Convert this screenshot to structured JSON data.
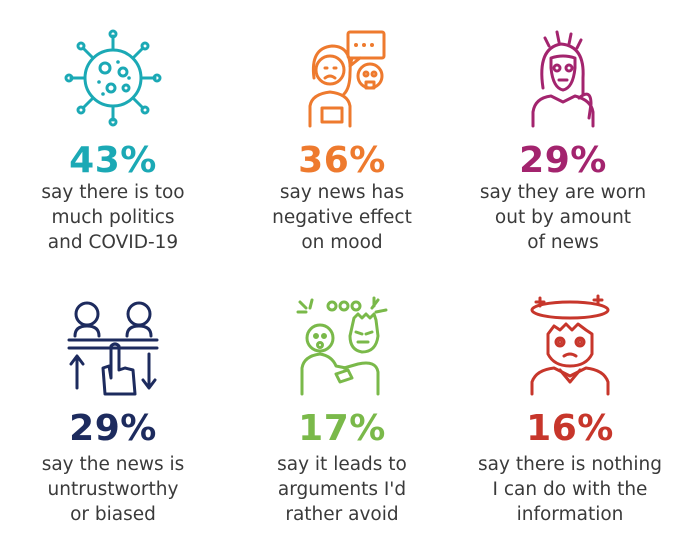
{
  "items": [
    {
      "percent": "43%",
      "color": "#1ba9b5",
      "icon": "virus-icon",
      "lines": [
        "say there is too",
        "much politics",
        "and COVID-19"
      ]
    },
    {
      "percent": "36%",
      "color": "#ee7a2e",
      "icon": "sad-person-speech-bubble-icon",
      "lines": [
        "say news has",
        "negative effect",
        "on mood"
      ]
    },
    {
      "percent": "29%",
      "color": "#a3246e",
      "icon": "exhausted-person-icon",
      "lines": [
        "say they are worn",
        "out by amount",
        "of news"
      ]
    },
    {
      "percent": "29%",
      "color": "#1d2b5e",
      "icon": "thumbs-down-vote-icon",
      "lines": [
        "say the news is",
        "untrustworthy",
        "or biased"
      ]
    },
    {
      "percent": "17%",
      "color": "#7ab94a",
      "icon": "arguing-people-icon",
      "lines": [
        "say it leads to",
        "arguments I'd",
        "rather avoid"
      ]
    },
    {
      "percent": "16%",
      "color": "#c7362b",
      "icon": "dizzy-person-icon",
      "lines": [
        "say there is nothing",
        "I can do with the",
        "information"
      ]
    }
  ]
}
